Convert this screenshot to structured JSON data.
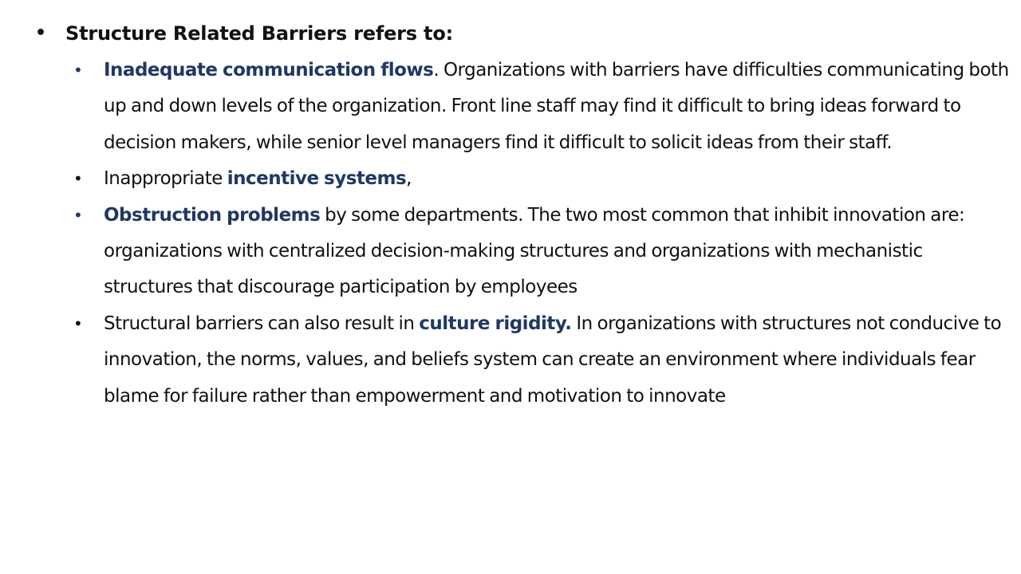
{
  "slide": {
    "heading": "Structure Related Barriers refers to:",
    "bullet_glyph": "•",
    "items": [
      {
        "lead": "",
        "highlight": "Inadequate communication flows",
        "trail": ". Organizations with barriers have difficulties communicating both up and down levels of the organization. Front line staff may find it difficult to bring ideas forward to decision makers, while senior level managers find it difficult to solicit ideas from their staff."
      },
      {
        "lead": "Inappropriate ",
        "highlight": "incentive systems",
        "trail": ","
      },
      {
        "lead": "",
        "highlight": "Obstruction problems",
        "trail": " by some departments. The two most common that inhibit innovation are: organizations with centralized decision-making structures and organizations with mechanistic structures that discourage participation by employees"
      },
      {
        "lead": "Structural barriers can also result in ",
        "highlight": "culture rigidity.",
        "trail": " In organizations with structures not conducive to innovation, the norms, values, and beliefs system can create an environment where individuals fear blame for failure rather than empowerment and motivation to innovate"
      }
    ]
  },
  "colors": {
    "highlight": "#1f3864",
    "text": "#111111",
    "background": "#ffffff"
  }
}
